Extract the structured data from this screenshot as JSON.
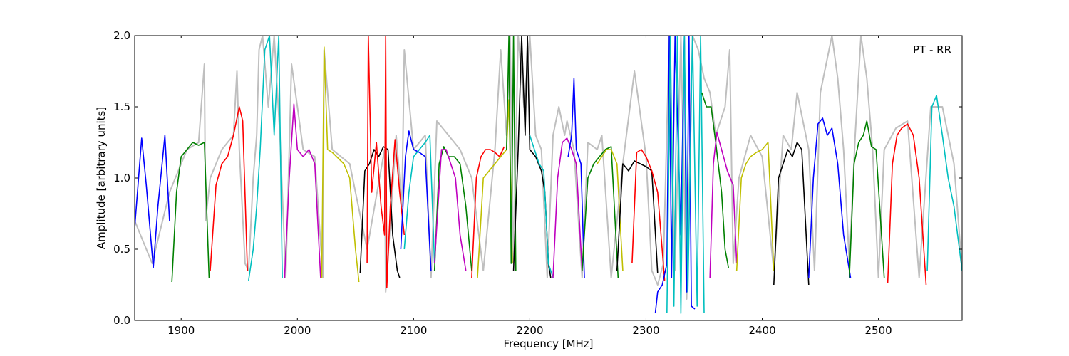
{
  "chart_data": {
    "type": "line",
    "title": "",
    "annotation": "PT - RR",
    "xlabel": "Frequency [MHz]",
    "ylabel": "Amplitude [arbitrary units]",
    "xlim": [
      1860,
      2572
    ],
    "ylim": [
      0.0,
      2.0
    ],
    "xticks": [
      1900,
      2000,
      2100,
      2200,
      2300,
      2400,
      2500
    ],
    "yticks": [
      0.0,
      0.5,
      1.0,
      1.5,
      2.0
    ],
    "xtick_labels": [
      "1900",
      "2000",
      "2100",
      "2200",
      "2300",
      "2400",
      "2500"
    ],
    "ytick_labels": [
      "0.0",
      "0.5",
      "1.0",
      "1.5",
      "2.0"
    ],
    "grid": false,
    "legend": "none",
    "background_series": {
      "color": "#bfbfbf",
      "x": [
        1860,
        1875,
        1890,
        1905,
        1915,
        1920,
        1921,
        1925,
        1935,
        1945,
        1948,
        1950,
        1955,
        1958,
        1962,
        1965,
        1967,
        1970,
        1975,
        1980,
        1985,
        1990,
        1995,
        2000,
        2005,
        2015,
        2022,
        2023,
        2030,
        2045,
        2060,
        2075,
        2076,
        2085,
        2090,
        2092,
        2100,
        2110,
        2115,
        2120,
        2130,
        2140,
        2150,
        2160,
        2170,
        2175,
        2180,
        2183,
        2186,
        2190,
        2195,
        2200,
        2205,
        2210,
        2215,
        2220,
        2225,
        2230,
        2232,
        2238,
        2245,
        2250,
        2258,
        2262,
        2270,
        2280,
        2290,
        2300,
        2305,
        2310,
        2315,
        2320,
        2325,
        2330,
        2335,
        2340,
        2345,
        2350,
        2355,
        2360,
        2368,
        2372,
        2375,
        2380,
        2390,
        2400,
        2410,
        2418,
        2425,
        2430,
        2440,
        2445,
        2450,
        2455,
        2460,
        2465,
        2470,
        2475,
        2480,
        2485,
        2490,
        2495,
        2500,
        2505,
        2515,
        2525,
        2535,
        2545,
        2555,
        2565,
        2572
      ],
      "y": [
        0.7,
        0.4,
        0.9,
        1.2,
        1.25,
        1.8,
        0.7,
        1.0,
        1.2,
        1.3,
        1.75,
        1.2,
        0.4,
        0.35,
        1.0,
        1.3,
        1.9,
        2.0,
        1.5,
        2.0,
        1.3,
        0.3,
        1.8,
        1.5,
        1.2,
        1.15,
        0.3,
        1.9,
        1.2,
        1.1,
        0.5,
        1.2,
        0.2,
        1.3,
        0.8,
        1.9,
        1.2,
        1.3,
        0.3,
        1.4,
        1.3,
        1.2,
        1.0,
        0.35,
        1.2,
        1.9,
        1.3,
        2.0,
        0.4,
        2.0,
        1.5,
        2.0,
        1.3,
        1.2,
        0.3,
        1.3,
        1.5,
        1.3,
        1.4,
        1.2,
        0.3,
        1.25,
        1.2,
        1.3,
        0.3,
        1.1,
        1.75,
        1.15,
        0.35,
        0.25,
        0.4,
        2.0,
        0.35,
        2.0,
        0.15,
        2.0,
        1.9,
        1.7,
        1.6,
        1.3,
        1.5,
        1.9,
        0.4,
        1.0,
        1.3,
        1.15,
        0.35,
        1.3,
        1.2,
        1.6,
        1.2,
        0.35,
        1.6,
        1.8,
        2.0,
        1.7,
        1.2,
        0.4,
        1.3,
        2.0,
        1.7,
        1.2,
        0.3,
        1.2,
        1.35,
        1.4,
        0.3,
        1.5,
        1.5,
        1.1,
        0.35
      ]
    },
    "series": [
      {
        "color": "#0000ff",
        "x": [
          1860,
          1866,
          1870,
          1876,
          1880,
          1886,
          1890
        ],
        "y": [
          0.65,
          1.28,
          0.95,
          0.37,
          0.8,
          1.3,
          0.7
        ]
      },
      {
        "color": "#008000",
        "x": [
          1892,
          1896,
          1900,
          1905,
          1910,
          1915,
          1920,
          1924
        ],
        "y": [
          0.27,
          0.9,
          1.15,
          1.2,
          1.25,
          1.23,
          1.25,
          0.3
        ]
      },
      {
        "color": "#ff0000",
        "x": [
          1925,
          1930,
          1935,
          1940,
          1945,
          1950,
          1953,
          1957
        ],
        "y": [
          0.35,
          0.95,
          1.1,
          1.15,
          1.3,
          1.5,
          1.4,
          0.35
        ]
      },
      {
        "color": "#00bfbf",
        "x": [
          1958,
          1962,
          1965,
          1968,
          1972,
          1976,
          1980,
          1984,
          1987
        ],
        "y": [
          0.28,
          0.5,
          0.8,
          1.2,
          1.9,
          2.0,
          1.3,
          2.0,
          0.3
        ]
      },
      {
        "color": "#bf00bf",
        "x": [
          1989,
          1993,
          1997,
          2000,
          2005,
          2010,
          2015,
          2020
        ],
        "y": [
          0.3,
          1.0,
          1.52,
          1.2,
          1.15,
          1.2,
          1.1,
          0.3
        ]
      },
      {
        "color": "#bfbf00",
        "x": [
          2021,
          2023,
          2026,
          2030,
          2040,
          2045,
          2050,
          2053
        ],
        "y": [
          0.3,
          1.92,
          1.2,
          1.18,
          1.1,
          1.0,
          0.5,
          0.27
        ]
      },
      {
        "color": "#000000",
        "x": [
          2054,
          2058,
          2062,
          2066,
          2070,
          2074,
          2078,
          2082,
          2086,
          2088
        ],
        "y": [
          0.33,
          1.05,
          1.1,
          1.2,
          1.15,
          1.22,
          1.2,
          0.6,
          0.35,
          0.3
        ]
      },
      {
        "color": "#ff0000",
        "x": [
          2060,
          2061,
          2064,
          2068,
          2072,
          2075,
          2076,
          2077,
          2080,
          2084,
          2088,
          2092
        ],
        "y": [
          0.4,
          2.0,
          0.9,
          1.25,
          0.8,
          0.6,
          2.0,
          0.23,
          0.8,
          1.27,
          0.9,
          0.6
        ]
      },
      {
        "color": "#0000ff",
        "x": [
          2089,
          2093,
          2096,
          2100,
          2105,
          2110,
          2115
        ],
        "y": [
          0.5,
          1.15,
          1.33,
          1.2,
          1.18,
          1.15,
          0.35
        ]
      },
      {
        "color": "#00bfbf",
        "x": [
          2092,
          2096,
          2100,
          2105,
          2110,
          2114,
          2118
        ],
        "y": [
          0.5,
          0.9,
          1.15,
          1.2,
          1.25,
          1.3,
          0.4
        ]
      },
      {
        "color": "#008000",
        "x": [
          2118,
          2122,
          2126,
          2130,
          2135,
          2140,
          2145,
          2150
        ],
        "y": [
          0.35,
          1.1,
          1.22,
          1.15,
          1.15,
          1.1,
          0.8,
          0.35
        ]
      },
      {
        "color": "#bf00bf",
        "x": [
          2118,
          2124,
          2128,
          2132,
          2136,
          2140,
          2145
        ],
        "y": [
          0.4,
          1.2,
          1.2,
          1.1,
          1.0,
          0.6,
          0.35
        ]
      },
      {
        "color": "#ff0000",
        "x": [
          2150,
          2154,
          2158,
          2162,
          2166,
          2170,
          2174,
          2178
        ],
        "y": [
          0.3,
          1.0,
          1.15,
          1.2,
          1.2,
          1.18,
          1.15,
          1.22
        ]
      },
      {
        "color": "#bfbf00",
        "x": [
          2155,
          2160,
          2165,
          2170,
          2175,
          2180,
          2182,
          2185
        ],
        "y": [
          0.3,
          1.0,
          1.05,
          1.1,
          1.15,
          1.2,
          1.55,
          0.4
        ]
      },
      {
        "color": "#008000",
        "x": [
          2180,
          2182,
          2184,
          2186,
          2188
        ],
        "y": [
          1.2,
          2.0,
          0.4,
          2.0,
          0.35
        ]
      },
      {
        "color": "#000000",
        "x": [
          2186,
          2190,
          2193,
          2196,
          2198,
          2200,
          2205,
          2210,
          2213,
          2216,
          2218
        ],
        "y": [
          0.35,
          1.2,
          2.0,
          1.3,
          2.0,
          1.2,
          1.15,
          1.05,
          0.9,
          0.4,
          0.3
        ]
      },
      {
        "color": "#00bfbf",
        "x": [
          2200,
          2204,
          2208,
          2212,
          2216,
          2220
        ],
        "y": [
          1.3,
          1.2,
          1.1,
          1.05,
          0.4,
          0.3
        ]
      },
      {
        "color": "#bf00bf",
        "x": [
          2220,
          2224,
          2228,
          2232,
          2236,
          2240,
          2245
        ],
        "y": [
          0.3,
          1.0,
          1.25,
          1.28,
          1.2,
          1.1,
          0.35
        ]
      },
      {
        "color": "#0000ff",
        "x": [
          2233,
          2236,
          2238,
          2240,
          2244,
          2247
        ],
        "y": [
          1.15,
          1.3,
          1.7,
          1.2,
          1.1,
          0.3
        ]
      },
      {
        "color": "#008000",
        "x": [
          2245,
          2250,
          2255,
          2260,
          2265,
          2270,
          2276
        ],
        "y": [
          0.35,
          1.0,
          1.1,
          1.15,
          1.2,
          1.22,
          0.3
        ]
      },
      {
        "color": "#bfbf00",
        "x": [
          2258,
          2262,
          2266,
          2270,
          2275,
          2280
        ],
        "y": [
          1.1,
          1.15,
          1.2,
          1.2,
          1.1,
          0.35
        ]
      },
      {
        "color": "#000000",
        "x": [
          2275,
          2280,
          2285,
          2290,
          2295,
          2300,
          2305,
          2310
        ],
        "y": [
          0.35,
          1.1,
          1.05,
          1.12,
          1.1,
          1.08,
          1.05,
          0.33
        ]
      },
      {
        "color": "#ff0000",
        "x": [
          2288,
          2292,
          2296,
          2300,
          2305,
          2310,
          2316
        ],
        "y": [
          0.4,
          1.18,
          1.2,
          1.15,
          1.05,
          0.9,
          0.28
        ]
      },
      {
        "color": "#0000ff",
        "x": [
          2308,
          2310,
          2314,
          2318,
          2320,
          2322,
          2325,
          2330,
          2333,
          2335,
          2337,
          2339,
          2342
        ],
        "y": [
          0.05,
          0.2,
          0.25,
          0.4,
          2.0,
          0.3,
          2.0,
          0.6,
          2.0,
          0.2,
          2.0,
          0.1,
          0.08
        ]
      },
      {
        "color": "#00bfbf",
        "x": [
          2318,
          2321,
          2324,
          2327,
          2330,
          2333,
          2336,
          2340,
          2344,
          2347,
          2350
        ],
        "y": [
          0.05,
          2.0,
          0.1,
          2.0,
          0.05,
          2.0,
          0.2,
          2.0,
          0.1,
          2.0,
          0.05
        ]
      },
      {
        "color": "#008000",
        "x": [
          2348,
          2352,
          2356,
          2360,
          2365,
          2368,
          2371
        ],
        "y": [
          1.6,
          1.5,
          1.5,
          1.25,
          0.9,
          0.5,
          0.37
        ]
      },
      {
        "color": "#bf00bf",
        "x": [
          2355,
          2358,
          2361,
          2365,
          2370,
          2375,
          2378
        ],
        "y": [
          0.3,
          1.1,
          1.32,
          1.2,
          1.05,
          0.95,
          0.4
        ]
      },
      {
        "color": "#bfbf00",
        "x": [
          2378,
          2382,
          2386,
          2390,
          2395,
          2400,
          2405,
          2410
        ],
        "y": [
          0.35,
          1.0,
          1.1,
          1.15,
          1.18,
          1.2,
          1.25,
          0.35
        ]
      },
      {
        "color": "#000000",
        "x": [
          2410,
          2414,
          2418,
          2422,
          2426,
          2430,
          2434,
          2440
        ],
        "y": [
          0.25,
          1.0,
          1.1,
          1.2,
          1.15,
          1.25,
          1.2,
          0.25
        ]
      },
      {
        "color": "#0000ff",
        "x": [
          2440,
          2444,
          2448,
          2452,
          2456,
          2460,
          2465,
          2470,
          2476
        ],
        "y": [
          0.3,
          1.0,
          1.38,
          1.42,
          1.3,
          1.35,
          1.1,
          0.6,
          0.3
        ]
      },
      {
        "color": "#008000",
        "x": [
          2475,
          2479,
          2483,
          2487,
          2490,
          2494,
          2498,
          2505
        ],
        "y": [
          0.3,
          1.1,
          1.25,
          1.3,
          1.4,
          1.22,
          1.2,
          0.3
        ]
      },
      {
        "color": "#ff0000",
        "x": [
          2508,
          2512,
          2516,
          2520,
          2525,
          2530,
          2535,
          2541
        ],
        "y": [
          0.26,
          1.1,
          1.3,
          1.35,
          1.38,
          1.3,
          1.0,
          0.25
        ]
      },
      {
        "color": "#00bfbf",
        "x": [
          2542,
          2546,
          2550,
          2555,
          2560,
          2565,
          2572
        ],
        "y": [
          0.35,
          1.5,
          1.58,
          1.3,
          1.0,
          0.8,
          0.35
        ]
      }
    ]
  }
}
